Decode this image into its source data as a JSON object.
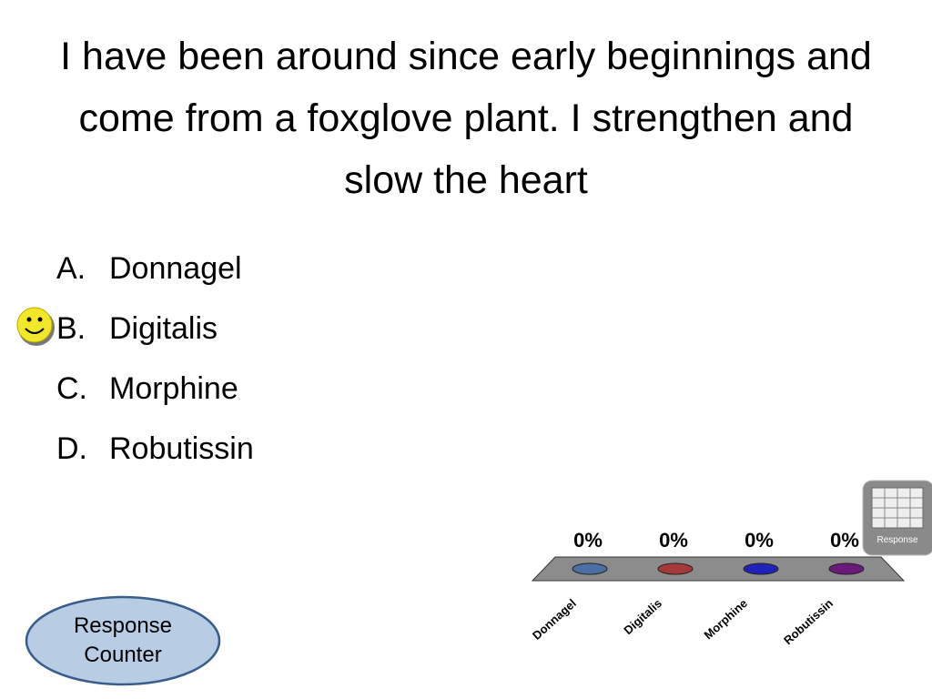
{
  "question": "I have been around since early beginnings and come from a foxglove plant.  I strengthen and slow the heart",
  "options": [
    {
      "letter": "A.",
      "text": "Donnagel"
    },
    {
      "letter": "B.",
      "text": "Digitalis"
    },
    {
      "letter": "C.",
      "text": "Morphine"
    },
    {
      "letter": "D.",
      "text": "Robutissin"
    }
  ],
  "response_counter": "Response Counter",
  "response_icon": "Response",
  "chart_data": {
    "type": "bar",
    "categories": [
      "Donnagel",
      "Digitalis",
      "Morphine",
      "Robutissin"
    ],
    "values": [
      0,
      0,
      0,
      0
    ],
    "value_labels": [
      "0%",
      "0%",
      "0%",
      "0%"
    ],
    "colors": [
      "#4a6fa5",
      "#a63a3a",
      "#1f22b8",
      "#6a1a7a"
    ]
  }
}
